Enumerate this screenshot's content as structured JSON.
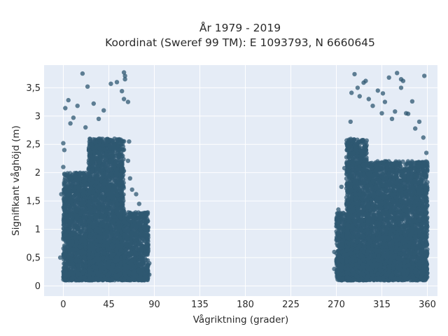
{
  "chart_data": {
    "type": "scatter",
    "title_line1": "År 1979 - 2019",
    "title_line2": "Koordinat (Sweref 99 TM): E 1093793, N 6660645",
    "xlabel": "Vågriktning (grader)",
    "ylabel": "Signifikant våghöjd (m)",
    "xlim": [
      -19,
      370
    ],
    "ylim": [
      -0.18,
      3.9
    ],
    "x_ticks": [
      0,
      45,
      90,
      135,
      180,
      225,
      270,
      315,
      360
    ],
    "x_tick_labels": [
      "0",
      "45",
      "90",
      "135",
      "180",
      "225",
      "270",
      "315",
      "360"
    ],
    "y_ticks": [
      0,
      0.5,
      1,
      1.5,
      2,
      2.5,
      3,
      3.5
    ],
    "y_tick_labels": [
      "0",
      "0,5",
      "1",
      "1,5",
      "2",
      "2,5",
      "3",
      "3,5"
    ],
    "grid": true,
    "marker_color": "#2f5871",
    "plot_background": "#e5ecf6",
    "dense_regions": [
      {
        "x_range": [
          0,
          25
        ],
        "y_range": [
          0.1,
          2.0
        ]
      },
      {
        "x_range": [
          25,
          60
        ],
        "y_range": [
          0.1,
          2.6
        ]
      },
      {
        "x_range": [
          60,
          84
        ],
        "y_range": [
          0.1,
          1.3
        ]
      },
      {
        "x_range": [
          270,
          285
        ],
        "y_range": [
          0.1,
          1.3
        ]
      },
      {
        "x_range": [
          280,
          300
        ],
        "y_range": [
          0.1,
          2.6
        ]
      },
      {
        "x_range": [
          300,
          360
        ],
        "y_range": [
          0.1,
          2.2
        ]
      }
    ],
    "points": [
      {
        "x": 19,
        "y": 3.75
      },
      {
        "x": 24,
        "y": 3.52
      },
      {
        "x": 5,
        "y": 3.28
      },
      {
        "x": 2,
        "y": 3.14
      },
      {
        "x": 47,
        "y": 3.57
      },
      {
        "x": 53,
        "y": 3.6
      },
      {
        "x": 60,
        "y": 3.77
      },
      {
        "x": 61,
        "y": 3.71
      },
      {
        "x": 61,
        "y": 3.65
      },
      {
        "x": 60,
        "y": 3.3
      },
      {
        "x": 64,
        "y": 3.25
      },
      {
        "x": 58,
        "y": 3.44
      },
      {
        "x": 30,
        "y": 3.22
      },
      {
        "x": 14,
        "y": 3.18
      },
      {
        "x": 40,
        "y": 3.1
      },
      {
        "x": 10,
        "y": 2.97
      },
      {
        "x": 22,
        "y": 2.8
      },
      {
        "x": 35,
        "y": 2.95
      },
      {
        "x": 7,
        "y": 2.87
      },
      {
        "x": 65,
        "y": 2.55
      },
      {
        "x": 64,
        "y": 2.21
      },
      {
        "x": 66,
        "y": 1.9
      },
      {
        "x": 68,
        "y": 1.7
      },
      {
        "x": 72,
        "y": 1.62
      },
      {
        "x": 75,
        "y": 1.45
      },
      {
        "x": 78,
        "y": 1.25
      },
      {
        "x": 80,
        "y": 1.05
      },
      {
        "x": 82,
        "y": 0.92
      },
      {
        "x": 84,
        "y": 0.62
      },
      {
        "x": 85,
        "y": 0.4
      },
      {
        "x": 85,
        "y": 0.2
      },
      {
        "x": 0,
        "y": 2.52
      },
      {
        "x": 1,
        "y": 2.4
      },
      {
        "x": 0,
        "y": 2.1
      },
      {
        "x": -2,
        "y": 1.62
      },
      {
        "x": -3,
        "y": 0.5
      },
      {
        "x": 288,
        "y": 3.74
      },
      {
        "x": 285,
        "y": 3.41
      },
      {
        "x": 291,
        "y": 3.5
      },
      {
        "x": 297,
        "y": 3.59
      },
      {
        "x": 299,
        "y": 3.62
      },
      {
        "x": 311,
        "y": 3.45
      },
      {
        "x": 316,
        "y": 3.4
      },
      {
        "x": 322,
        "y": 3.68
      },
      {
        "x": 330,
        "y": 3.76
      },
      {
        "x": 334,
        "y": 3.65
      },
      {
        "x": 334,
        "y": 3.5
      },
      {
        "x": 336,
        "y": 3.62
      },
      {
        "x": 357,
        "y": 3.71
      },
      {
        "x": 345,
        "y": 3.26
      },
      {
        "x": 328,
        "y": 3.08
      },
      {
        "x": 341,
        "y": 3.04
      },
      {
        "x": 293,
        "y": 3.35
      },
      {
        "x": 302,
        "y": 3.3
      },
      {
        "x": 306,
        "y": 3.18
      },
      {
        "x": 318,
        "y": 3.25
      },
      {
        "x": 339,
        "y": 3.05
      },
      {
        "x": 352,
        "y": 2.9
      },
      {
        "x": 348,
        "y": 2.78
      },
      {
        "x": 356,
        "y": 2.62
      },
      {
        "x": 359,
        "y": 2.35
      },
      {
        "x": 360,
        "y": 2.1
      },
      {
        "x": 284,
        "y": 2.9
      },
      {
        "x": 281,
        "y": 2.4
      },
      {
        "x": 278,
        "y": 2.08
      },
      {
        "x": 275,
        "y": 1.75
      },
      {
        "x": 272,
        "y": 1.35
      },
      {
        "x": 270,
        "y": 1.05
      },
      {
        "x": 268,
        "y": 0.6
      },
      {
        "x": 268,
        "y": 0.3
      },
      {
        "x": 325,
        "y": 2.95
      },
      {
        "x": 315,
        "y": 3.05
      }
    ]
  }
}
